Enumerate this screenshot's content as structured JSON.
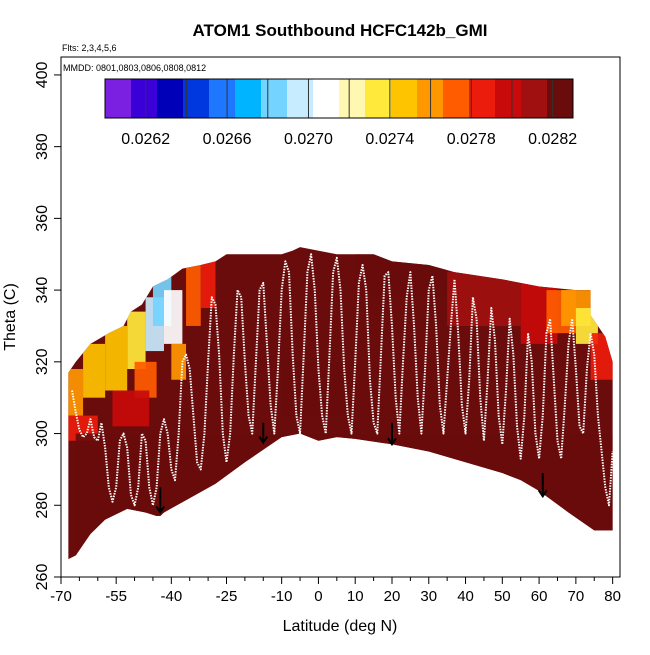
{
  "chart_data": {
    "type": "heatmap",
    "title": "ATOM1 Southbound HCFC142b_GMI",
    "flights_note": "Flts: 2,3,4,5,6",
    "dates_note": "MMDD: 0801,0803,0806,0808,0812",
    "xlabel": "Latitude (deg N)",
    "ylabel": "Theta (C)",
    "xlim": [
      -70,
      82
    ],
    "ylim": [
      260,
      405
    ],
    "x_major_ticks": [
      -70,
      -55,
      -40,
      -25,
      -10,
      0,
      10,
      20,
      30,
      40,
      50,
      60,
      70,
      80
    ],
    "x_minor_ticks": [
      -65,
      -60,
      -50,
      -45,
      -35,
      -30,
      -20,
      -15,
      -5,
      5,
      15,
      25,
      35,
      45,
      55,
      65,
      75
    ],
    "y_ticks": [
      260,
      280,
      300,
      320,
      340,
      360,
      380,
      400
    ],
    "grid": false,
    "colorbar": {
      "position": "top",
      "range": [
        0.026,
        0.0283
      ],
      "tick_labels": [
        "0.0262",
        "0.0266",
        "0.0270",
        "0.0274",
        "0.0278",
        "0.0282"
      ],
      "tick_values": [
        0.0262,
        0.0266,
        0.027,
        0.0274,
        0.0278,
        0.0282
      ],
      "separator_values": [
        0.0262,
        0.0264,
        0.0266,
        0.0268,
        0.027,
        0.0272,
        0.0274,
        0.0276,
        0.0278,
        0.028,
        0.0282
      ],
      "colors": [
        "#7b1fe0",
        "#3b00d8",
        "#0000b8",
        "#0038e0",
        "#1e78ff",
        "#00b4ff",
        "#74d4ff",
        "#c8ecff",
        "#ffffff",
        "#fff8b0",
        "#ffea3c",
        "#ffc400",
        "#ff9800",
        "#ff5c00",
        "#ec1c0c",
        "#c80a0a",
        "#a01010",
        "#6a0c0c"
      ]
    },
    "domain_bottom": [
      [
        -68,
        265
      ],
      [
        -66,
        266
      ],
      [
        -62,
        272
      ],
      [
        -58,
        276
      ],
      [
        -52,
        279
      ],
      [
        -47,
        278
      ],
      [
        -44,
        277
      ],
      [
        -43,
        277
      ],
      [
        -42,
        278
      ],
      [
        -35,
        282
      ],
      [
        -28,
        286
      ],
      [
        -20,
        292
      ],
      [
        -10,
        299
      ],
      [
        -5,
        300
      ],
      [
        0,
        298
      ],
      [
        5,
        299
      ],
      [
        10,
        298.5
      ],
      [
        20,
        297
      ],
      [
        30,
        295
      ],
      [
        40,
        292
      ],
      [
        50,
        289
      ],
      [
        55,
        287
      ],
      [
        60,
        284
      ],
      [
        68,
        278
      ],
      [
        75,
        273
      ],
      [
        80,
        273
      ]
    ],
    "domain_top": [
      [
        -68,
        317
      ],
      [
        -66,
        320
      ],
      [
        -62,
        325
      ],
      [
        -57,
        328
      ],
      [
        -53,
        330
      ],
      [
        -51,
        334
      ],
      [
        -48,
        336
      ],
      [
        -45,
        341
      ],
      [
        -41,
        343
      ],
      [
        -37,
        346
      ],
      [
        -32,
        347
      ],
      [
        -28,
        348
      ],
      [
        -25,
        350
      ],
      [
        -15,
        350
      ],
      [
        -10,
        350
      ],
      [
        -7,
        351
      ],
      [
        -5,
        352
      ],
      [
        5,
        350
      ],
      [
        15,
        350
      ],
      [
        20,
        348
      ],
      [
        30,
        347
      ],
      [
        37,
        345
      ],
      [
        50,
        343
      ],
      [
        60,
        341
      ],
      [
        70,
        340
      ],
      [
        74,
        340
      ],
      [
        74,
        333
      ],
      [
        78,
        327
      ],
      [
        80,
        320
      ],
      [
        80,
        300
      ]
    ],
    "field_fallback": 0.02822,
    "field_cells": [
      {
        "lat": [
          -68,
          -64
        ],
        "theta": [
          305,
          318
        ],
        "value": 0.02755
      },
      {
        "lat": [
          -68,
          -60
        ],
        "theta": [
          298,
          305
        ],
        "value": 0.02785
      },
      {
        "lat": [
          -64,
          -58
        ],
        "theta": [
          310,
          325
        ],
        "value": 0.02752
      },
      {
        "lat": [
          -58,
          -52
        ],
        "theta": [
          312,
          330
        ],
        "value": 0.02745
      },
      {
        "lat": [
          -52,
          -47
        ],
        "theta": [
          318,
          334
        ],
        "value": 0.02735
      },
      {
        "lat": [
          -47,
          -42
        ],
        "theta": [
          323,
          338
        ],
        "value": 0.027
      },
      {
        "lat": [
          -45,
          -40
        ],
        "theta": [
          330,
          344
        ],
        "value": 0.02685
      },
      {
        "lat": [
          -42,
          -37
        ],
        "theta": [
          325,
          340
        ],
        "value": 0.02705
      },
      {
        "lat": [
          -40,
          -36
        ],
        "theta": [
          315,
          325
        ],
        "value": 0.0276
      },
      {
        "lat": [
          -36,
          -32
        ],
        "theta": [
          330,
          347
        ],
        "value": 0.02775
      },
      {
        "lat": [
          -32,
          -28
        ],
        "theta": [
          335,
          348
        ],
        "value": 0.0279
      },
      {
        "lat": [
          -50,
          -44
        ],
        "theta": [
          310,
          320
        ],
        "value": 0.02775
      },
      {
        "lat": [
          -56,
          -46
        ],
        "theta": [
          302,
          312
        ],
        "value": 0.028
      },
      {
        "lat": [
          10,
          35
        ],
        "theta": [
          338,
          350
        ],
        "value": 0.02818
      },
      {
        "lat": [
          35,
          55
        ],
        "theta": [
          330,
          345
        ],
        "value": 0.0281
      },
      {
        "lat": [
          55,
          65
        ],
        "theta": [
          325,
          342
        ],
        "value": 0.02795
      },
      {
        "lat": [
          62,
          70
        ],
        "theta": [
          328,
          340
        ],
        "value": 0.02775
      },
      {
        "lat": [
          66,
          74
        ],
        "theta": [
          330,
          340
        ],
        "value": 0.02755
      },
      {
        "lat": [
          70,
          76
        ],
        "theta": [
          325,
          335
        ],
        "value": 0.0274
      },
      {
        "lat": [
          74,
          80
        ],
        "theta": [
          315,
          328
        ],
        "value": 0.0279
      },
      {
        "lat": [
          -10,
          10
        ],
        "theta": [
          305,
          320
        ],
        "value": 0.0283
      },
      {
        "lat": [
          -66,
          80
        ],
        "theta": [
          265,
          300
        ],
        "value": 0.0283
      }
    ],
    "arrows": [
      {
        "lat": -43,
        "theta_top": 285,
        "theta_tip": 278
      },
      {
        "lat": -15,
        "theta_top": 303,
        "theta_tip": 297.5
      },
      {
        "lat": 20,
        "theta_top": 303,
        "theta_tip": 297
      },
      {
        "lat": 61,
        "theta_top": 289,
        "theta_tip": 282.5
      }
    ],
    "flight_track": [
      [
        -67,
        312
      ],
      [
        -66,
        306
      ],
      [
        -65,
        301
      ],
      [
        -64,
        299
      ],
      [
        -63,
        300
      ],
      [
        -62,
        304
      ],
      [
        -61,
        299
      ],
      [
        -60,
        298
      ],
      [
        -59,
        303
      ],
      [
        -58,
        296
      ],
      [
        -57,
        285
      ],
      [
        -56,
        281
      ],
      [
        -55,
        285
      ],
      [
        -54,
        298
      ],
      [
        -53,
        300
      ],
      [
        -52,
        296
      ],
      [
        -51,
        283
      ],
      [
        -50,
        280
      ],
      [
        -49,
        285
      ],
      [
        -48,
        300
      ],
      [
        -47,
        298
      ],
      [
        -46,
        285
      ],
      [
        -45,
        280
      ],
      [
        -44,
        285
      ],
      [
        -43,
        300
      ],
      [
        -42,
        304
      ],
      [
        -41,
        300
      ],
      [
        -40,
        290
      ],
      [
        -39,
        287
      ],
      [
        -38,
        300
      ],
      [
        -37,
        320
      ],
      [
        -36,
        322
      ],
      [
        -35,
        318
      ],
      [
        -34,
        305
      ],
      [
        -33,
        292
      ],
      [
        -32,
        290
      ],
      [
        -31,
        300
      ],
      [
        -30,
        320
      ],
      [
        -29,
        338
      ],
      [
        -28,
        336
      ],
      [
        -27,
        322
      ],
      [
        -26,
        300
      ],
      [
        -25,
        292
      ],
      [
        -24,
        300
      ],
      [
        -23,
        322
      ],
      [
        -22,
        340
      ],
      [
        -21,
        338
      ],
      [
        -20,
        320
      ],
      [
        -19,
        305
      ],
      [
        -18,
        300
      ],
      [
        -17,
        320
      ],
      [
        -16,
        340
      ],
      [
        -15,
        342
      ],
      [
        -14,
        325
      ],
      [
        -13,
        308
      ],
      [
        -12,
        300
      ],
      [
        -11,
        318
      ],
      [
        -10,
        340
      ],
      [
        -9,
        348
      ],
      [
        -8,
        345
      ],
      [
        -7,
        322
      ],
      [
        -6,
        305
      ],
      [
        -5,
        300
      ],
      [
        -4,
        322
      ],
      [
        -3,
        345
      ],
      [
        -2,
        350
      ],
      [
        -1,
        340
      ],
      [
        0,
        318
      ],
      [
        1,
        305
      ],
      [
        2,
        300
      ],
      [
        3,
        322
      ],
      [
        4,
        345
      ],
      [
        5,
        349
      ],
      [
        6,
        340
      ],
      [
        7,
        318
      ],
      [
        8,
        305
      ],
      [
        9,
        300
      ],
      [
        10,
        320
      ],
      [
        11,
        342
      ],
      [
        12,
        347
      ],
      [
        13,
        340
      ],
      [
        14,
        315
      ],
      [
        15,
        303
      ],
      [
        16,
        300
      ],
      [
        17,
        322
      ],
      [
        18,
        344
      ],
      [
        19,
        345
      ],
      [
        20,
        330
      ],
      [
        21,
        310
      ],
      [
        22,
        300
      ],
      [
        23,
        320
      ],
      [
        24,
        338
      ],
      [
        25,
        345
      ],
      [
        26,
        330
      ],
      [
        27,
        310
      ],
      [
        28,
        300
      ],
      [
        29,
        318
      ],
      [
        30,
        340
      ],
      [
        31,
        344
      ],
      [
        32,
        330
      ],
      [
        33,
        308
      ],
      [
        34,
        300
      ],
      [
        35,
        315
      ],
      [
        36,
        330
      ],
      [
        37,
        343
      ],
      [
        38,
        328
      ],
      [
        39,
        308
      ],
      [
        40,
        300
      ],
      [
        41,
        315
      ],
      [
        42,
        338
      ],
      [
        43,
        332
      ],
      [
        44,
        310
      ],
      [
        45,
        298
      ],
      [
        46,
        315
      ],
      [
        47,
        335
      ],
      [
        48,
        326
      ],
      [
        49,
        305
      ],
      [
        50,
        297
      ],
      [
        51,
        312
      ],
      [
        52,
        332
      ],
      [
        53,
        322
      ],
      [
        54,
        302
      ],
      [
        55,
        293
      ],
      [
        56,
        305
      ],
      [
        57,
        328
      ],
      [
        58,
        320
      ],
      [
        59,
        300
      ],
      [
        60,
        293
      ],
      [
        61,
        305
      ],
      [
        62,
        328
      ],
      [
        63,
        332
      ],
      [
        64,
        315
      ],
      [
        65,
        298
      ],
      [
        66,
        293
      ],
      [
        67,
        308
      ],
      [
        68,
        325
      ],
      [
        69,
        332
      ],
      [
        70,
        318
      ],
      [
        71,
        302
      ],
      [
        72,
        300
      ],
      [
        73,
        318
      ],
      [
        74,
        328
      ],
      [
        75,
        322
      ],
      [
        76,
        305
      ],
      [
        77,
        295
      ],
      [
        78,
        285
      ],
      [
        79,
        280
      ],
      [
        80,
        295
      ]
    ]
  }
}
